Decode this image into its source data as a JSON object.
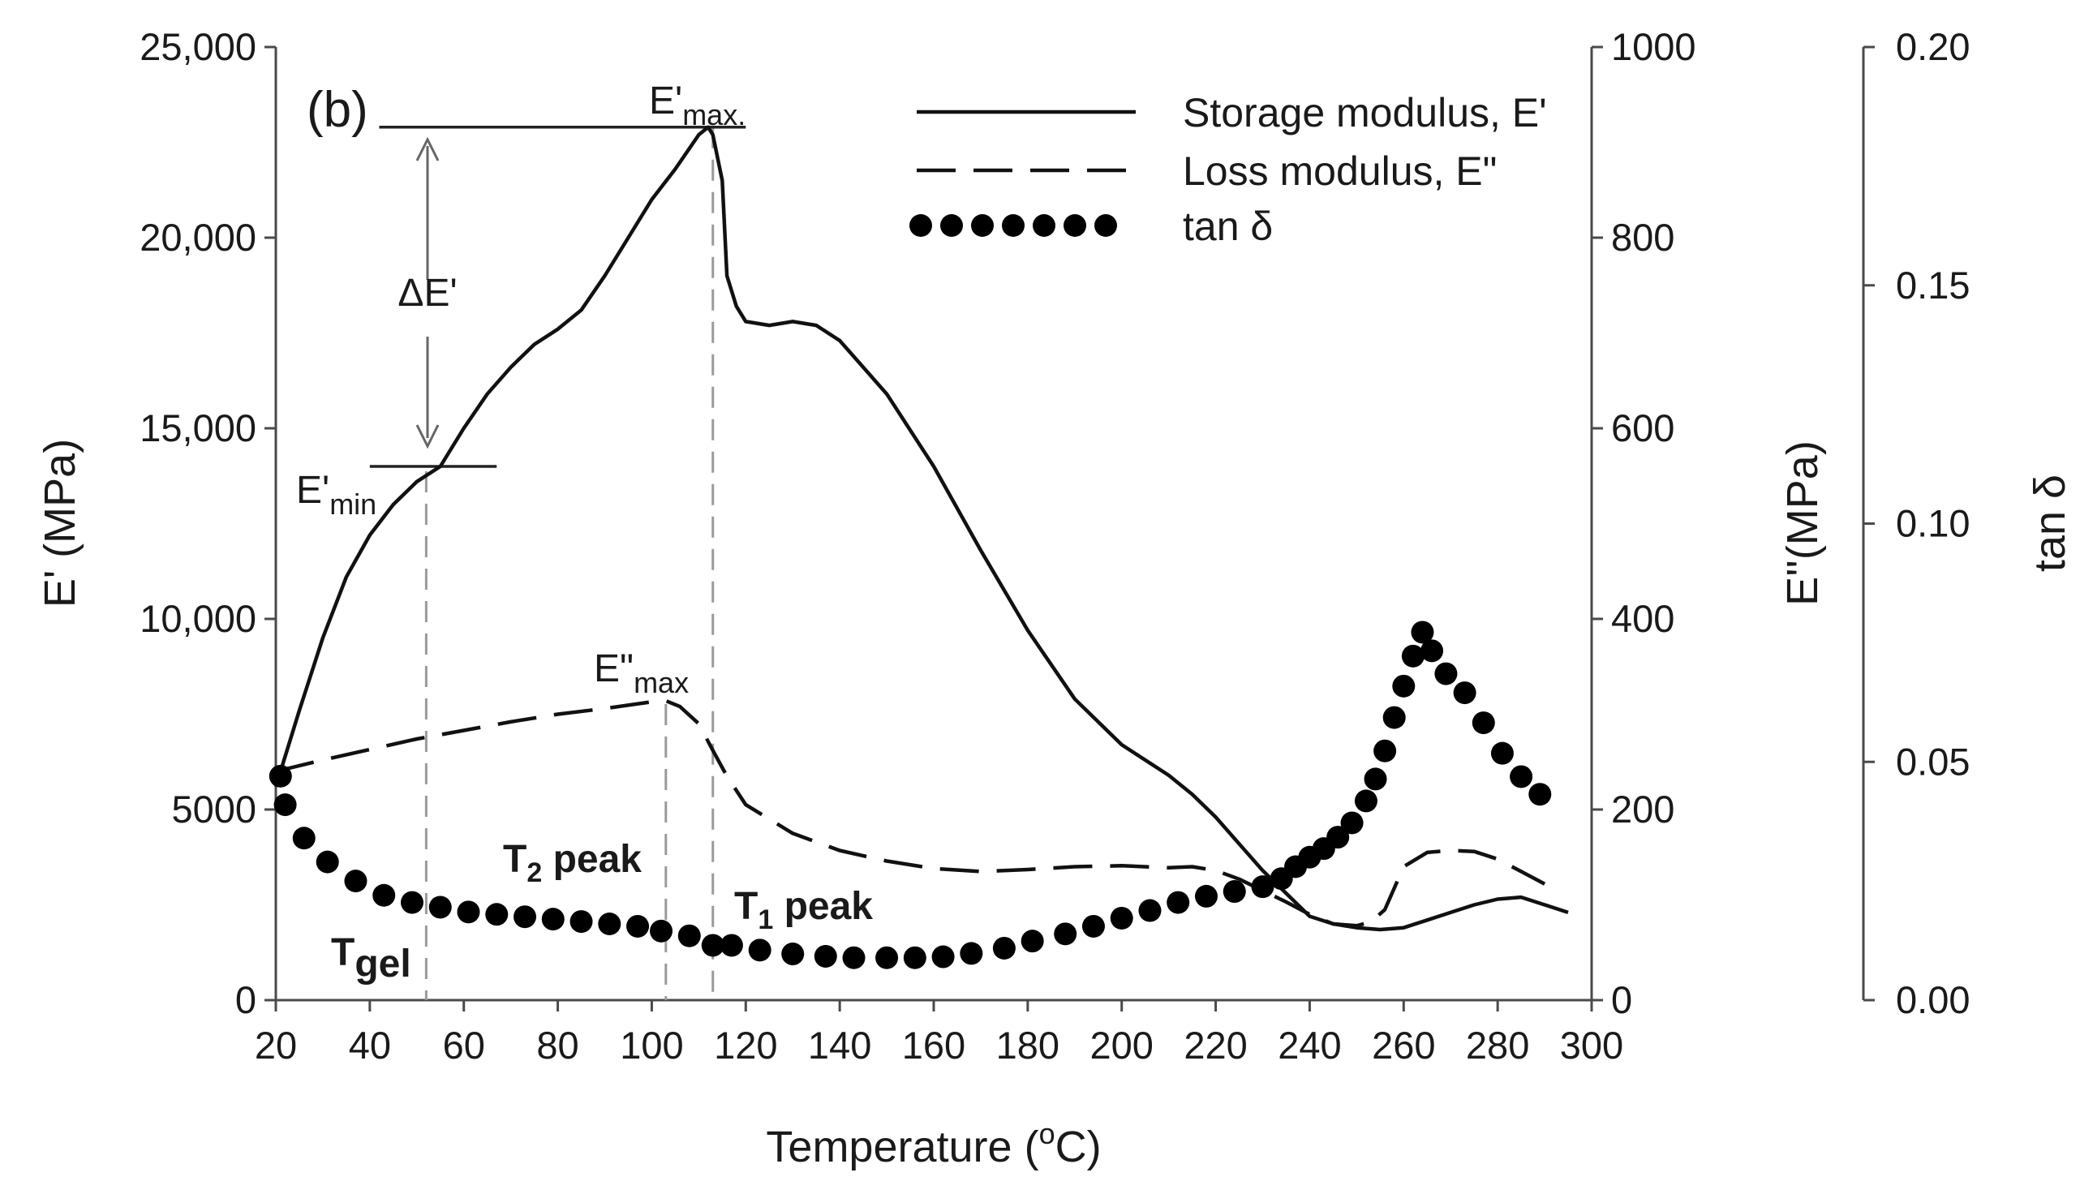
{
  "chart_data": {
    "type": "line",
    "panel_label": "(b)",
    "xlabel": "Temperature (°C)",
    "xlabel_parts": [
      "Temperature (",
      "o",
      "C)"
    ],
    "x_ticks": [
      "20",
      "40",
      "60",
      "80",
      "100",
      "120",
      "140",
      "160",
      "180",
      "200",
      "220",
      "240",
      "260",
      "280",
      "300"
    ],
    "xlim": [
      20,
      300
    ],
    "y_left": {
      "label": "E' (MPa)",
      "ylim": [
        0,
        25000
      ],
      "ticks": [
        0,
        5000,
        10000,
        15000,
        20000,
        25000
      ],
      "tick_labels": [
        "0",
        "5000",
        "10,000",
        "15,000",
        "20,000",
        "25,000"
      ]
    },
    "y_right": {
      "label": "E''(MPa)",
      "ylim": [
        0,
        1000
      ],
      "ticks": [
        0,
        200,
        400,
        600,
        800,
        1000
      ],
      "tick_labels": [
        "0",
        "200",
        "400",
        "600",
        "800",
        "1000"
      ]
    },
    "y_far_right": {
      "label": "tan δ",
      "ylim": [
        0,
        0.2
      ],
      "ticks": [
        0,
        0.05,
        0.1,
        0.15,
        0.2
      ],
      "tick_labels": [
        "0.00",
        "0.05",
        "0.10",
        "0.15",
        "0.20"
      ]
    },
    "legend": {
      "position": "top-right",
      "entries": [
        {
          "label": "Storage modulus, E'",
          "style": "solid"
        },
        {
          "label": "Loss modulus, E\"",
          "style": "dashed"
        },
        {
          "label": "tan δ",
          "style": "dots"
        }
      ]
    },
    "series": [
      {
        "name": "Storage modulus, E'",
        "axis": "left",
        "style": "solid",
        "x": [
          20,
          25,
          30,
          35,
          40,
          45,
          50,
          55,
          60,
          65,
          70,
          75,
          80,
          85,
          90,
          95,
          100,
          105,
          110,
          112,
          113,
          115,
          116,
          118,
          120,
          125,
          130,
          135,
          140,
          145,
          150,
          160,
          170,
          180,
          190,
          200,
          210,
          215,
          220,
          225,
          230,
          235,
          240,
          245,
          250,
          255,
          260,
          265,
          270,
          275,
          280,
          285,
          290,
          295
        ],
        "y": [
          5600,
          7600,
          9500,
          11100,
          12200,
          13000,
          13600,
          14000,
          15000,
          15900,
          16600,
          17200,
          17600,
          18100,
          19000,
          20000,
          21000,
          21800,
          22700,
          22900,
          22700,
          21500,
          19000,
          18200,
          17800,
          17700,
          17800,
          17700,
          17300,
          16600,
          15900,
          14000,
          11800,
          9700,
          7900,
          6700,
          5900,
          5400,
          4800,
          4100,
          3400,
          2800,
          2200,
          2000,
          1900,
          1850,
          1900,
          2100,
          2300,
          2500,
          2650,
          2700,
          2500,
          2300
        ]
      },
      {
        "name": "Loss modulus, E\"",
        "axis": "right",
        "style": "dashed",
        "x": [
          20,
          30,
          40,
          50,
          60,
          70,
          80,
          90,
          100,
          103,
          106,
          110,
          113,
          116,
          120,
          130,
          140,
          150,
          160,
          170,
          180,
          190,
          200,
          210,
          215,
          220,
          225,
          230,
          235,
          240,
          245,
          250,
          253,
          256,
          260,
          265,
          270,
          275,
          280,
          285,
          290
        ],
        "y": [
          240,
          252,
          263,
          274,
          283,
          292,
          300,
          306,
          313,
          314,
          308,
          290,
          262,
          235,
          205,
          175,
          157,
          146,
          138,
          135,
          137,
          140,
          141,
          139,
          140,
          136,
          127,
          115,
          103,
          90,
          80,
          78,
          82,
          95,
          140,
          155,
          157,
          156,
          148,
          135,
          122
        ]
      },
      {
        "name": "tan δ",
        "axis": "far_right",
        "style": "dots",
        "x": [
          21,
          22,
          26,
          31,
          37,
          43,
          49,
          55,
          61,
          67,
          73,
          79,
          85,
          91,
          97,
          102,
          108,
          113,
          117,
          123,
          130,
          137,
          143,
          150,
          156,
          162,
          168,
          175,
          181,
          188,
          194,
          200,
          206,
          212,
          218,
          224,
          230,
          234,
          237,
          240,
          243,
          246,
          249,
          252,
          254,
          256,
          258,
          260,
          262,
          264,
          266,
          269,
          273,
          277,
          281,
          285,
          289
        ],
        "y": [
          0.047,
          0.041,
          0.034,
          0.029,
          0.025,
          0.022,
          0.0205,
          0.0195,
          0.0185,
          0.018,
          0.0175,
          0.017,
          0.0165,
          0.016,
          0.0155,
          0.0145,
          0.0135,
          0.0115,
          0.0115,
          0.0105,
          0.0097,
          0.0092,
          0.0089,
          0.0089,
          0.0089,
          0.0091,
          0.0098,
          0.0109,
          0.0124,
          0.0139,
          0.0155,
          0.0172,
          0.0188,
          0.0205,
          0.0218,
          0.0228,
          0.0238,
          0.0255,
          0.028,
          0.03,
          0.0318,
          0.0342,
          0.0372,
          0.0418,
          0.0464,
          0.0523,
          0.0593,
          0.0659,
          0.0722,
          0.0772,
          0.0733,
          0.0685,
          0.0645,
          0.0582,
          0.0518,
          0.0469,
          0.0432
        ]
      }
    ],
    "annotations": {
      "e_max_parts": [
        "E'",
        "max."
      ],
      "e_min_parts": [
        "E'",
        "min"
      ],
      "loss_max_parts": [
        "E\"",
        "max"
      ],
      "delta_e": "ΔE'",
      "t2_parts": [
        "T",
        "2",
        " peak"
      ],
      "t1_parts": [
        "T",
        "1",
        " peak"
      ],
      "tgel_parts": [
        "T",
        "gel"
      ],
      "e_max_value": 22900,
      "e_max_temperature": 113,
      "e_min_value": 14000,
      "e_min_temperature": 52,
      "loss_max_temperature": 103,
      "t_gel_temperature": 52,
      "t2_peak_temperature": 103,
      "t1_peak_temperature": 113
    }
  }
}
